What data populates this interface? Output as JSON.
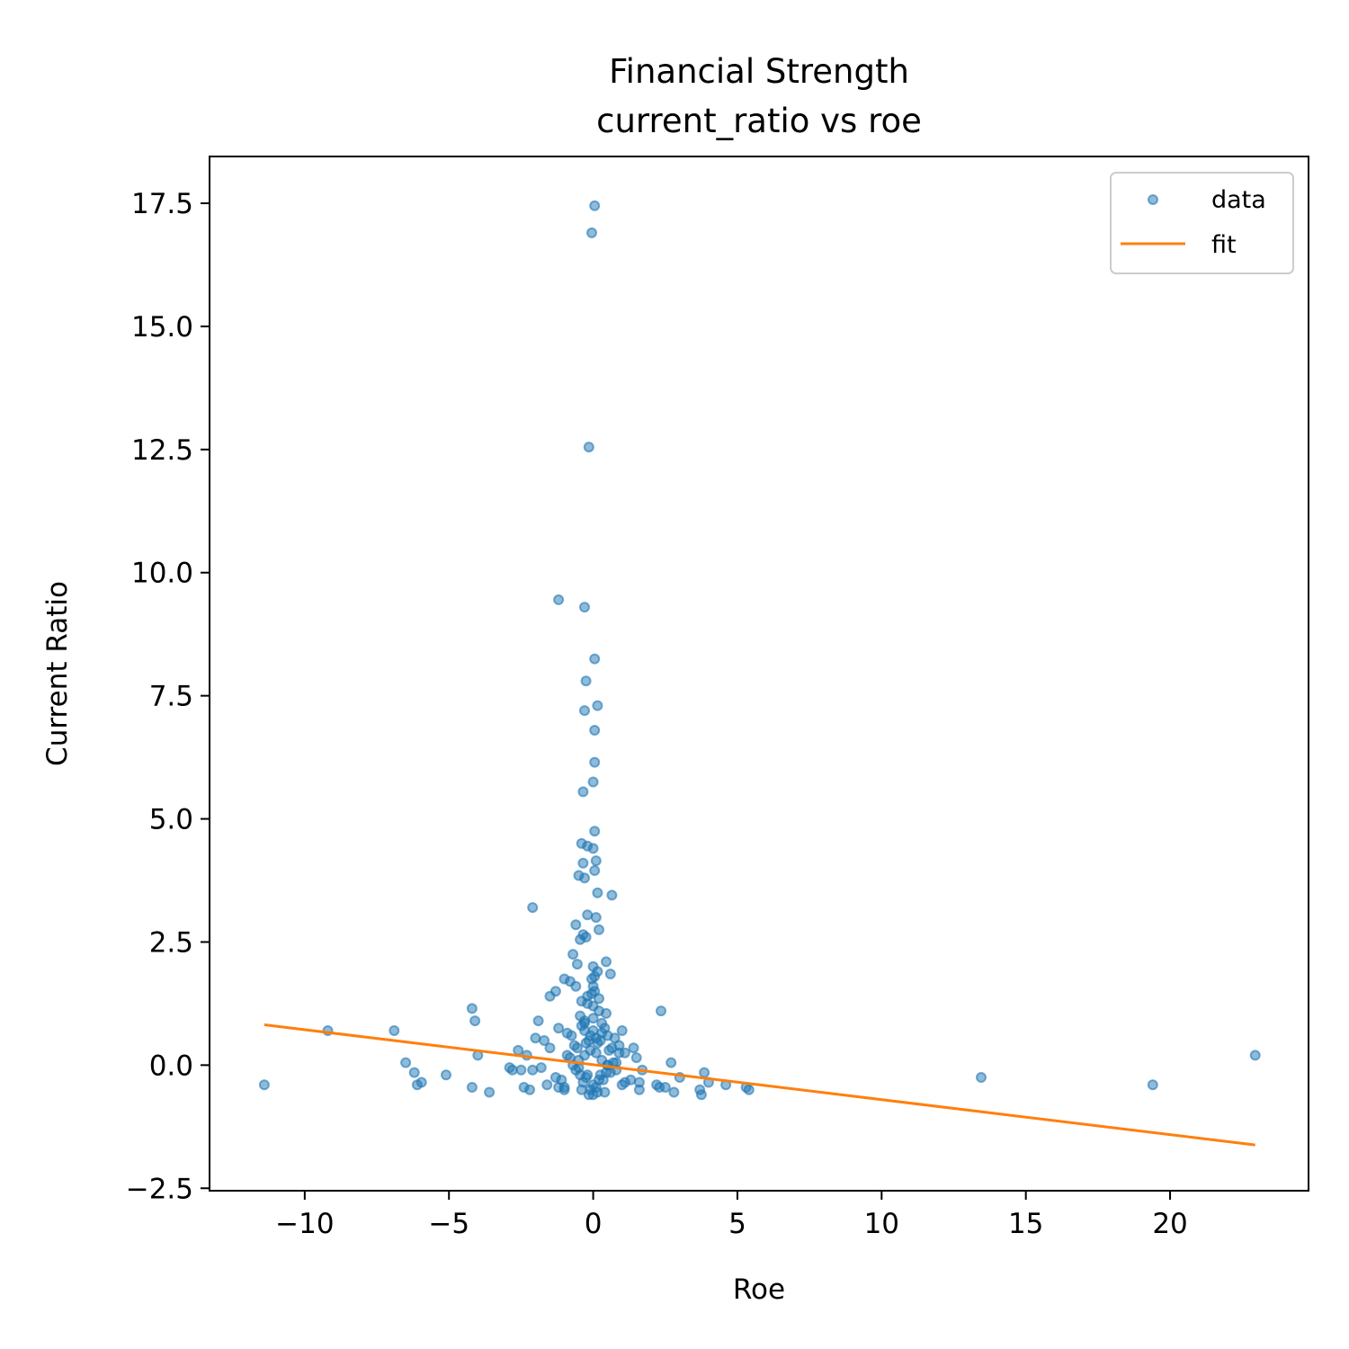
{
  "chart_data": {
    "type": "scatter",
    "title": "Financial Strength",
    "subtitle": "current_ratio vs roe",
    "xlabel": "Roe",
    "ylabel": "Current Ratio",
    "xlim": [
      -13.3,
      24.8
    ],
    "ylim": [
      -2.55,
      18.45
    ],
    "xticks": [
      -10,
      -5,
      0,
      5,
      10,
      15,
      20
    ],
    "xtick_labels": [
      "−10",
      "−5",
      "0",
      "5",
      "10",
      "15",
      "20"
    ],
    "yticks": [
      -2.5,
      0.0,
      2.5,
      5.0,
      7.5,
      10.0,
      12.5,
      15.0,
      17.5
    ],
    "ytick_labels": [
      "−2.5",
      "0.0",
      "2.5",
      "5.0",
      "7.5",
      "10.0",
      "12.5",
      "15.0",
      "17.5"
    ],
    "grid": false,
    "legend_position": "top-right",
    "colors": {
      "data": "#1f77b4",
      "fit": "#ff7f0e"
    },
    "series": [
      {
        "name": "data",
        "kind": "scatter",
        "x": [
          0.05,
          -0.05,
          -0.15,
          -1.2,
          -0.3,
          0.05,
          -0.25,
          0.15,
          -0.3,
          0.05,
          0.05,
          0.0,
          -0.35,
          0.05,
          -0.4,
          -0.2,
          0.0,
          0.1,
          0.05,
          -0.35,
          -0.5,
          -0.3,
          0.15,
          0.65,
          -2.1,
          -0.2,
          0.1,
          -0.6,
          0.2,
          -0.35,
          -0.45,
          -0.25,
          0.45,
          -0.7,
          -0.55,
          -1.0,
          -1.3,
          0.15,
          -1.5,
          -0.8,
          -0.6,
          -0.4,
          1.0,
          0.6,
          2.35,
          -1.9,
          -4.2,
          -4.1,
          -9.2,
          -6.9,
          -2.0,
          -1.7,
          -1.2,
          -0.9,
          -0.3,
          0.5,
          0.9,
          1.1,
          1.4,
          -2.6,
          -2.3,
          -1.5,
          1.5,
          -4.0,
          -6.5,
          -2.9,
          -2.8,
          2.7,
          -2.1,
          -6.2,
          -5.1,
          -2.5,
          -1.8,
          0.8,
          1.7,
          3.0,
          3.85,
          4.0,
          2.2,
          2.3,
          -11.4,
          -6.1,
          -5.95,
          -4.2,
          -3.6,
          -2.4,
          -2.2,
          -1.2,
          -1.0,
          1.6,
          2.5,
          2.8,
          3.7,
          3.75,
          4.6,
          5.3,
          5.4,
          13.45,
          19.4,
          22.95,
          -0.5,
          -0.3,
          -0.1,
          0.1,
          0.3,
          0.5,
          -0.2,
          0.2,
          0.0,
          -0.4,
          0.4,
          -0.6,
          0.6,
          -0.15,
          0.15,
          0.0,
          -0.3,
          0.3,
          -0.8,
          0.8,
          -0.45,
          0.45,
          0.0,
          -0.2,
          0.2,
          -0.1,
          0.1,
          -0.65,
          0.65,
          -0.35,
          0.35,
          -1.0,
          1.0,
          0.0,
          -0.5,
          0.5,
          -0.25,
          0.25,
          -0.75,
          0.75,
          0.05,
          -0.05,
          -0.9,
          0.9,
          -0.4,
          0.4,
          -1.1,
          1.1,
          -1.3,
          1.3,
          -0.2,
          0.2,
          0.0,
          -0.55,
          0.55,
          -0.15,
          0.15,
          0.05,
          -0.05,
          -0.3,
          0.3,
          -0.7,
          0.7,
          0.0,
          -0.1,
          0.1,
          -1.6,
          1.6,
          -0.45,
          0.45,
          -0.25,
          0.25,
          0.0
        ],
        "y": [
          17.45,
          16.9,
          12.55,
          9.45,
          9.3,
          8.25,
          7.8,
          7.3,
          7.2,
          6.8,
          6.15,
          5.75,
          5.55,
          4.75,
          4.5,
          4.45,
          4.4,
          4.15,
          3.95,
          4.1,
          3.85,
          3.8,
          3.5,
          3.45,
          3.2,
          3.05,
          3.0,
          2.85,
          2.75,
          2.65,
          2.55,
          2.6,
          2.1,
          2.25,
          2.05,
          1.75,
          1.5,
          1.9,
          1.4,
          1.7,
          1.6,
          1.3,
          0.7,
          1.85,
          1.1,
          0.9,
          1.15,
          0.9,
          0.7,
          0.7,
          0.55,
          0.5,
          0.75,
          0.65,
          0.85,
          0.6,
          0.4,
          0.25,
          0.35,
          0.3,
          0.2,
          0.35,
          0.15,
          0.2,
          0.05,
          -0.05,
          -0.1,
          0.05,
          -0.1,
          -0.15,
          -0.2,
          -0.1,
          -0.05,
          -0.1,
          -0.1,
          -0.25,
          -0.15,
          -0.35,
          -0.4,
          -0.45,
          -0.4,
          -0.4,
          -0.35,
          -0.45,
          -0.55,
          -0.45,
          -0.5,
          -0.45,
          -0.5,
          -0.5,
          -0.45,
          -0.55,
          -0.5,
          -0.6,
          -0.4,
          -0.45,
          -0.5,
          -0.25,
          -0.4,
          0.2,
          0.1,
          0.2,
          0.3,
          0.25,
          0.1,
          0.0,
          -0.2,
          -0.3,
          -0.4,
          -0.5,
          -0.55,
          -0.1,
          -0.15,
          0.5,
          0.45,
          0.7,
          0.9,
          0.85,
          0.15,
          0.05,
          1.0,
          1.05,
          1.2,
          1.4,
          1.35,
          0.6,
          0.55,
          0.4,
          0.35,
          -0.35,
          -0.3,
          -0.45,
          -0.4,
          1.6,
          -0.05,
          0.0,
          -0.25,
          -0.2,
          0.6,
          0.55,
          1.8,
          1.75,
          0.2,
          0.25,
          0.8,
          0.75,
          -0.3,
          -0.35,
          -0.25,
          -0.3,
          1.25,
          1.1,
          0.95,
          0.35,
          0.3,
          -0.6,
          -0.55,
          1.5,
          1.45,
          0.7,
          0.65,
          0.0,
          0.05,
          2.0,
          -0.5,
          -0.45,
          -0.4,
          -0.35,
          -0.2,
          -0.15,
          0.45,
          0.5,
          -0.6
        ]
      },
      {
        "name": "fit",
        "kind": "line",
        "x": [
          -11.4,
          22.95
        ],
        "y": [
          0.82,
          -1.62
        ]
      }
    ]
  }
}
